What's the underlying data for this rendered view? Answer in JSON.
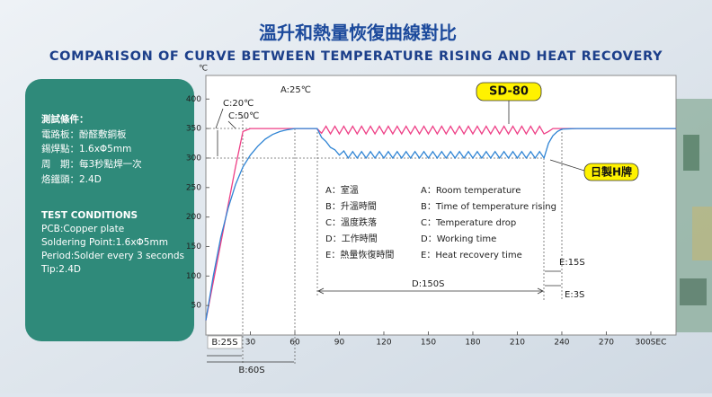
{
  "chart_data": {
    "type": "line",
    "title": "溫升和熱量恢復曲線對比",
    "subtitle": "COMPARISON OF CURVE BETWEEN TEMPERATURE RISING AND HEAT RECOVERY",
    "y_unit": "℃",
    "xlim": [
      0,
      317
    ],
    "ylim": [
      0,
      440
    ],
    "xticks": [
      30,
      60,
      90,
      120,
      150,
      180,
      210,
      240,
      270,
      {
        "value": 300,
        "label": "300SEC"
      }
    ],
    "yticks": [
      50,
      100,
      150,
      200,
      250,
      300,
      350,
      400
    ],
    "x": [
      0,
      5,
      10,
      15,
      20,
      25,
      30,
      35,
      40,
      45,
      50,
      55,
      60,
      70,
      75,
      78,
      81,
      84,
      87,
      90,
      93,
      96,
      99,
      102,
      105,
      108,
      111,
      114,
      117,
      120,
      123,
      126,
      129,
      132,
      135,
      138,
      141,
      144,
      147,
      150,
      153,
      156,
      159,
      162,
      165,
      168,
      171,
      174,
      177,
      180,
      183,
      186,
      189,
      192,
      195,
      198,
      201,
      204,
      207,
      210,
      213,
      216,
      219,
      222,
      225,
      228,
      231,
      234,
      237,
      240,
      250,
      317
    ],
    "series": [
      {
        "name": "SD-80",
        "color": "#ee3f86",
        "values": [
          25,
          90,
          155,
          220,
          285,
          345,
          350,
          350,
          350,
          350,
          350,
          350,
          350,
          350,
          350,
          342,
          354,
          341,
          354,
          341,
          354,
          341,
          354,
          341,
          354,
          341,
          354,
          341,
          354,
          341,
          354,
          341,
          354,
          341,
          354,
          341,
          354,
          341,
          354,
          341,
          354,
          341,
          354,
          341,
          354,
          341,
          354,
          341,
          354,
          341,
          354,
          341,
          354,
          341,
          354,
          341,
          354,
          341,
          354,
          341,
          354,
          341,
          354,
          341,
          354,
          341,
          345,
          350,
          350,
          350,
          350,
          350
        ]
      },
      {
        "name": "日製H牌",
        "color": "#2f84d4",
        "values": [
          25,
          100,
          165,
          215,
          255,
          285,
          305,
          320,
          332,
          340,
          345,
          348,
          350,
          350,
          350,
          335,
          328,
          318,
          314,
          305,
          312,
          300,
          311,
          300,
          311,
          300,
          311,
          300,
          311,
          300,
          311,
          300,
          311,
          300,
          311,
          300,
          311,
          300,
          311,
          300,
          311,
          300,
          311,
          300,
          311,
          300,
          311,
          300,
          311,
          300,
          311,
          300,
          311,
          300,
          311,
          300,
          311,
          300,
          311,
          300,
          311,
          300,
          311,
          300,
          311,
          300,
          325,
          338,
          345,
          349,
          350,
          350
        ]
      }
    ],
    "annotations": [
      "A:25℃",
      "C:20℃",
      "C:50℃",
      "D:150S",
      "E:15S",
      "E:3S",
      "B:25S",
      "B:60S"
    ],
    "legend_box": [
      {
        "cn": "A：室溫",
        "en": "A：Room temperature"
      },
      {
        "cn": "B：升溫時間",
        "en": "B：Time of temperature rising"
      },
      {
        "cn": "C：溫度跌落",
        "en": "C：Temperature drop"
      },
      {
        "cn": "D：工作時間",
        "en": "D：Working time"
      },
      {
        "cn": "E：熱量恢復時間",
        "en": "E：Heat recovery time"
      }
    ]
  },
  "test_conditions": {
    "cn": [
      "測試條件：",
      "電路板：酚醛敷銅板",
      "錫焊點：1.6xΦ5mm",
      "周　期：每3秒點焊一次",
      "烙鐵頭：2.4D"
    ],
    "en": [
      "TEST CONDITIONS",
      "PCB:Copper plate",
      "Soldering Point:1.6xΦ5mm",
      "Period:Solder every 3 seconds",
      "Tip:2.4D"
    ]
  }
}
